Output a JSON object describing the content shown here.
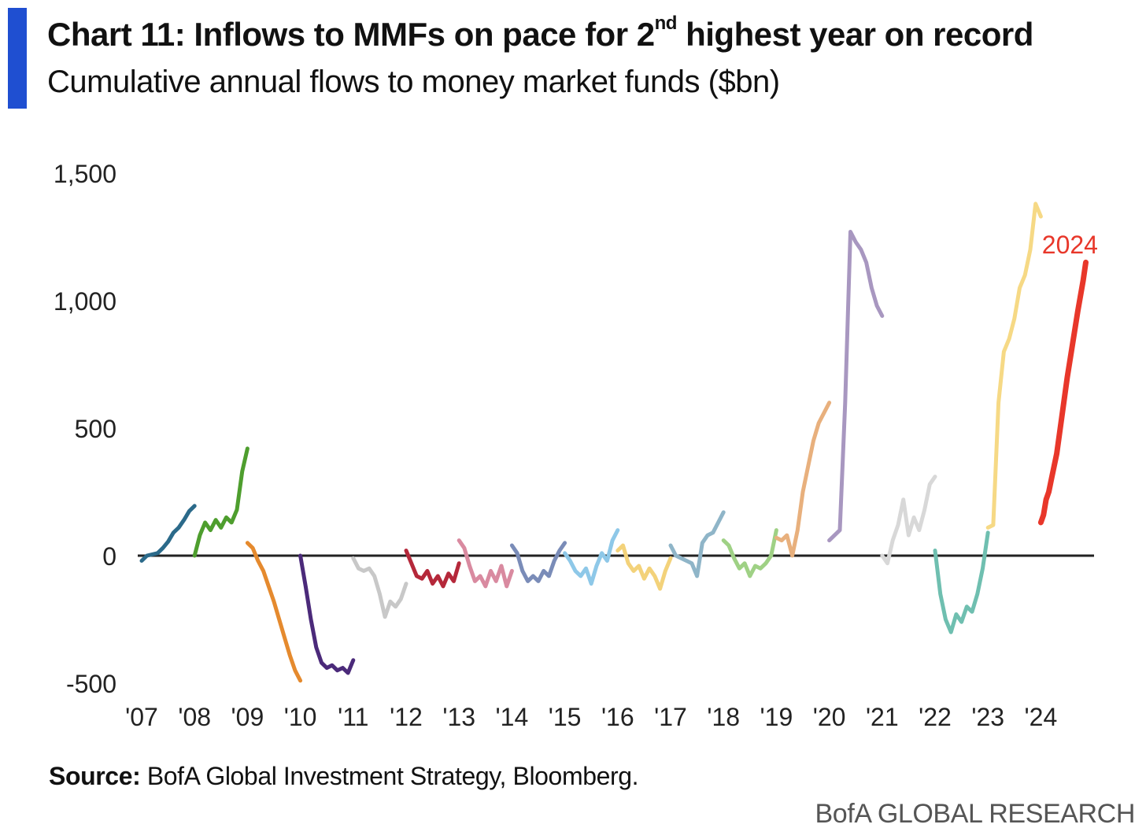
{
  "header": {
    "title_main": "Chart 11: Inflows to MMFs on pace for 2",
    "title_sup": "nd",
    "title_rest": " highest year on record",
    "subtitle": "Cumulative annual flows to money market funds ($bn)"
  },
  "footer": {
    "source_label": "Source:",
    "source_text": " BofA Global Investment Strategy, Bloomberg.",
    "brand": "BofA GLOBAL RESEARCH"
  },
  "colors": {
    "accent": "#1f4fd1",
    "zero_line": "#222222",
    "highlight": "#e8372a"
  },
  "chart_data": {
    "type": "line",
    "title": "Chart 11: Inflows to MMFs on pace for 2nd highest year on record",
    "subtitle": "Cumulative annual flows to money market funds ($bn)",
    "xlabel": "",
    "ylabel": "",
    "xlim": [
      2007,
      2025
    ],
    "ylim": [
      -500,
      1500
    ],
    "y_ticks": [
      1500,
      1000,
      500,
      0,
      -500
    ],
    "y_tick_labels": [
      "1,500",
      "1,000",
      "500",
      "0",
      "-500"
    ],
    "x_ticks": [
      2007,
      2008,
      2009,
      2010,
      2011,
      2012,
      2013,
      2014,
      2015,
      2016,
      2017,
      2018,
      2019,
      2020,
      2021,
      2022,
      2023,
      2024
    ],
    "x_tick_labels": [
      "'07",
      "'08",
      "'09",
      "'10",
      "'11",
      "'12",
      "'13",
      "'14",
      "'15",
      "'16",
      "'17",
      "'18",
      "'19",
      "'20",
      "'21",
      "'22",
      "'23",
      "'24"
    ],
    "grid": false,
    "legend": "none",
    "annotations": [
      {
        "text": "2024",
        "x": 2024.55,
        "y": 1185,
        "color": "#e8372a"
      }
    ],
    "series": [
      {
        "year": "2007",
        "color": "#2b6a8a",
        "x": [
          2007.0,
          2007.1,
          2007.2,
          2007.3,
          2007.4,
          2007.5,
          2007.6,
          2007.7,
          2007.8,
          2007.9,
          2008.0
        ],
        "y": [
          -20,
          0,
          5,
          10,
          30,
          55,
          90,
          110,
          140,
          175,
          195
        ]
      },
      {
        "year": "2008",
        "color": "#4e9e2e",
        "x": [
          2008.0,
          2008.1,
          2008.2,
          2008.3,
          2008.4,
          2008.5,
          2008.6,
          2008.7,
          2008.8,
          2008.9,
          2009.0
        ],
        "y": [
          0,
          80,
          130,
          100,
          140,
          110,
          150,
          130,
          180,
          330,
          420
        ]
      },
      {
        "year": "2009",
        "color": "#e58a2e",
        "x": [
          2009.0,
          2009.1,
          2009.2,
          2009.3,
          2009.4,
          2009.5,
          2009.6,
          2009.7,
          2009.8,
          2009.9,
          2010.0
        ],
        "y": [
          50,
          30,
          -20,
          -60,
          -120,
          -180,
          -250,
          -320,
          -390,
          -450,
          -490
        ]
      },
      {
        "year": "2010",
        "color": "#4b2a7a",
        "x": [
          2010.0,
          2010.1,
          2010.2,
          2010.3,
          2010.4,
          2010.5,
          2010.6,
          2010.7,
          2010.8,
          2010.9,
          2011.0
        ],
        "y": [
          0,
          -120,
          -250,
          -360,
          -420,
          -440,
          -430,
          -450,
          -440,
          -460,
          -410
        ]
      },
      {
        "year": "2011",
        "color": "#c8c8c8",
        "x": [
          2011.0,
          2011.1,
          2011.2,
          2011.3,
          2011.4,
          2011.5,
          2011.6,
          2011.7,
          2011.8,
          2011.9,
          2012.0
        ],
        "y": [
          -10,
          -50,
          -60,
          -50,
          -80,
          -150,
          -240,
          -180,
          -200,
          -170,
          -110
        ]
      },
      {
        "year": "2012",
        "color": "#b5283a",
        "x": [
          2012.0,
          2012.1,
          2012.2,
          2012.3,
          2012.4,
          2012.5,
          2012.6,
          2012.7,
          2012.8,
          2012.9,
          2013.0
        ],
        "y": [
          20,
          -30,
          -80,
          -90,
          -60,
          -110,
          -80,
          -120,
          -70,
          -100,
          -30
        ]
      },
      {
        "year": "2013",
        "color": "#d98aa0",
        "x": [
          2013.0,
          2013.1,
          2013.2,
          2013.3,
          2013.4,
          2013.5,
          2013.6,
          2013.7,
          2013.8,
          2013.9,
          2014.0
        ],
        "y": [
          60,
          30,
          -40,
          -100,
          -80,
          -120,
          -60,
          -100,
          -40,
          -120,
          -60
        ]
      },
      {
        "year": "2014",
        "color": "#7a8cb8",
        "x": [
          2014.0,
          2014.1,
          2014.2,
          2014.3,
          2014.4,
          2014.5,
          2014.6,
          2014.7,
          2014.8,
          2014.9,
          2015.0
        ],
        "y": [
          40,
          10,
          -60,
          -100,
          -80,
          -100,
          -60,
          -80,
          -20,
          20,
          50
        ]
      },
      {
        "year": "2015",
        "color": "#8ec8e8",
        "x": [
          2015.0,
          2015.1,
          2015.2,
          2015.3,
          2015.4,
          2015.5,
          2015.6,
          2015.7,
          2015.8,
          2015.9,
          2016.0
        ],
        "y": [
          10,
          -20,
          -60,
          -80,
          -50,
          -110,
          -40,
          10,
          -20,
          60,
          100
        ]
      },
      {
        "year": "2016",
        "color": "#f3d27a",
        "x": [
          2016.0,
          2016.1,
          2016.2,
          2016.3,
          2016.4,
          2016.5,
          2016.6,
          2016.7,
          2016.8,
          2016.9,
          2017.0
        ],
        "y": [
          20,
          40,
          -30,
          -60,
          -40,
          -90,
          -50,
          -80,
          -130,
          -60,
          -10
        ]
      },
      {
        "year": "2017",
        "color": "#8fb5c8",
        "x": [
          2017.0,
          2017.1,
          2017.2,
          2017.3,
          2017.4,
          2017.5,
          2017.6,
          2017.7,
          2017.8,
          2017.9,
          2018.0
        ],
        "y": [
          40,
          0,
          -10,
          -20,
          -30,
          -80,
          50,
          80,
          90,
          130,
          170
        ]
      },
      {
        "year": "2018",
        "color": "#9fd185",
        "x": [
          2018.0,
          2018.1,
          2018.2,
          2018.3,
          2018.4,
          2018.5,
          2018.6,
          2018.7,
          2018.8,
          2018.9,
          2019.0
        ],
        "y": [
          60,
          40,
          -10,
          -50,
          -30,
          -80,
          -40,
          -50,
          -30,
          0,
          100
        ]
      },
      {
        "year": "2019",
        "color": "#e8b07d",
        "x": [
          2019.0,
          2019.1,
          2019.2,
          2019.3,
          2019.4,
          2019.5,
          2019.6,
          2019.7,
          2019.8,
          2019.9,
          2020.0
        ],
        "y": [
          70,
          60,
          80,
          0,
          100,
          250,
          350,
          450,
          520,
          560,
          600
        ]
      },
      {
        "year": "2020",
        "color": "#a897c0",
        "x": [
          2020.0,
          2020.1,
          2020.2,
          2020.3,
          2020.4,
          2020.5,
          2020.6,
          2020.7,
          2020.8,
          2020.9,
          2021.0
        ],
        "y": [
          60,
          80,
          100,
          600,
          1270,
          1230,
          1200,
          1150,
          1050,
          980,
          940
        ]
      },
      {
        "year": "2021",
        "color": "#d8d8d8",
        "x": [
          2021.0,
          2021.1,
          2021.2,
          2021.3,
          2021.4,
          2021.5,
          2021.6,
          2021.7,
          2021.8,
          2021.9,
          2022.0
        ],
        "y": [
          0,
          -30,
          60,
          120,
          220,
          80,
          150,
          100,
          180,
          280,
          310
        ]
      },
      {
        "year": "2022",
        "color": "#6fbfb0",
        "x": [
          2022.0,
          2022.1,
          2022.2,
          2022.3,
          2022.4,
          2022.5,
          2022.6,
          2022.7,
          2022.8,
          2022.9,
          2023.0
        ],
        "y": [
          20,
          -150,
          -250,
          -300,
          -230,
          -260,
          -200,
          -220,
          -150,
          -50,
          90
        ]
      },
      {
        "year": "2023",
        "color": "#f6d985",
        "x": [
          2023.0,
          2023.1,
          2023.2,
          2023.3,
          2023.4,
          2023.5,
          2023.6,
          2023.7,
          2023.8,
          2023.9,
          2024.0
        ],
        "y": [
          110,
          120,
          600,
          800,
          850,
          930,
          1050,
          1100,
          1200,
          1380,
          1330
        ]
      },
      {
        "year": "2024",
        "color": "#e8372a",
        "x": [
          2024.0,
          2024.05,
          2024.1,
          2024.15,
          2024.2,
          2024.3,
          2024.4,
          2024.5,
          2024.6,
          2024.7,
          2024.8,
          2024.85
        ],
        "y": [
          130,
          160,
          220,
          250,
          300,
          400,
          550,
          700,
          830,
          960,
          1080,
          1150
        ]
      }
    ]
  }
}
